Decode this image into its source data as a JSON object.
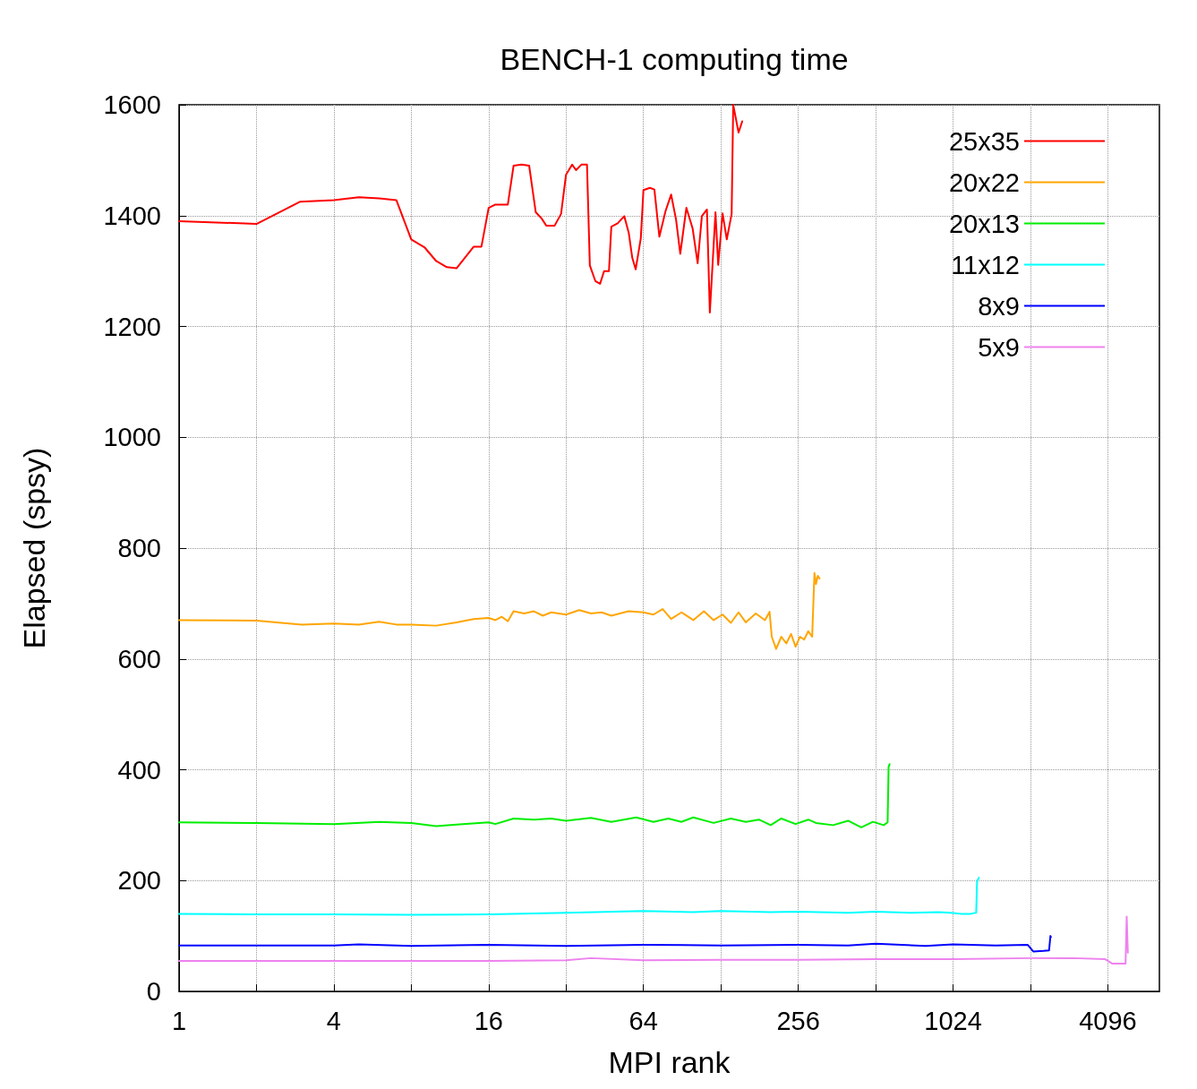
{
  "chart_data": {
    "type": "line",
    "title": "BENCH-1 computing time",
    "xlabel": "MPI rank",
    "ylabel": "Elapsed (spsy)",
    "log": "x",
    "grid": true,
    "legend": "top right",
    "marker": "none",
    "line_style": "solid",
    "xlim": [
      1,
      6500
    ],
    "xticks": [
      1,
      {
        "value": 2,
        "label": null
      },
      4,
      {
        "value": 8,
        "label": null
      },
      16,
      {
        "value": 32,
        "label": null
      },
      64,
      {
        "value": 128,
        "label": null
      },
      256,
      {
        "value": 512,
        "label": null
      },
      1024,
      {
        "value": 2048,
        "label": null
      },
      4096
    ],
    "ylim": [
      0,
      1600
    ],
    "yticks": [
      0,
      200,
      400,
      600,
      800,
      1000,
      1200,
      1400,
      1600
    ],
    "series": [
      {
        "name": "25x35",
        "color": "#ff0000",
        "x": [
          1,
          2,
          2.95,
          4,
          5,
          6,
          7,
          8,
          9,
          10,
          11,
          12,
          14,
          15,
          16,
          17,
          19,
          20,
          21.5,
          23,
          24.4,
          25.7,
          26.8,
          28.9,
          30.6,
          32,
          33.8,
          35,
          36.7,
          38.6,
          39.6,
          41.6,
          43.4,
          45,
          47,
          48,
          50.8,
          53.9,
          56.1,
          57.9,
          59.7,
          62.5,
          64,
          67.8,
          70.6,
          73.8,
          78,
          82,
          85.7,
          89,
          94,
          99.4,
          104,
          108,
          113,
          116,
          122,
          125,
          130,
          135,
          141,
          143,
          150,
          155
        ],
        "values": [
          1390,
          1385,
          1425,
          1428,
          1433,
          1431,
          1428,
          1357,
          1343,
          1318,
          1307,
          1305,
          1344,
          1344,
          1414,
          1420,
          1420,
          1490,
          1492,
          1490,
          1406,
          1395,
          1382,
          1382,
          1403,
          1474,
          1492,
          1482,
          1492,
          1492,
          1310,
          1282,
          1277,
          1300,
          1300,
          1380,
          1386,
          1399,
          1369,
          1324,
          1303,
          1359,
          1446,
          1450,
          1447,
          1362,
          1408,
          1438,
          1393,
          1331,
          1414,
          1377,
          1314,
          1399,
          1411,
          1225,
          1406,
          1311,
          1404,
          1357,
          1403,
          1600,
          1550,
          1570
        ]
      },
      {
        "name": "20x22",
        "color": "#ffa500",
        "x": [
          1,
          2,
          3,
          4,
          5,
          6,
          7,
          8,
          10,
          12,
          14,
          16,
          17,
          18,
          19,
          20,
          22,
          24,
          26,
          28,
          32,
          36,
          40,
          44,
          48,
          56,
          64,
          70,
          76,
          82,
          90,
          100,
          110,
          120,
          130,
          140,
          150,
          160,
          175,
          190,
          198,
          202,
          210,
          220,
          230,
          240,
          250,
          260,
          270,
          280,
          290,
          296,
          300,
          305,
          310
        ],
        "values": [
          670,
          669,
          662,
          664,
          662,
          667,
          662,
          662,
          660,
          666,
          672,
          674,
          670,
          676,
          668,
          686,
          682,
          686,
          678,
          684,
          680,
          688,
          682,
          684,
          678,
          686,
          684,
          680,
          690,
          672,
          684,
          670,
          686,
          670,
          680,
          665,
          684,
          666,
          682,
          670,
          685,
          640,
          618,
          640,
          628,
          645,
          622,
          640,
          635,
          650,
          640,
          755,
          735,
          750,
          745
        ]
      },
      {
        "name": "20x13",
        "color": "#00ee00",
        "x": [
          1,
          2,
          4,
          6,
          8,
          10,
          12,
          16,
          17,
          20,
          24,
          28,
          32,
          40,
          48,
          60,
          70,
          80,
          90,
          100,
          120,
          140,
          160,
          180,
          200,
          220,
          250,
          280,
          300,
          350,
          400,
          450,
          500,
          550,
          570,
          575,
          580
        ],
        "values": [
          305,
          304,
          302,
          306,
          304,
          298,
          301,
          305,
          302,
          312,
          310,
          312,
          308,
          313,
          306,
          314,
          306,
          312,
          306,
          314,
          304,
          312,
          306,
          310,
          300,
          312,
          302,
          310,
          304,
          300,
          308,
          296,
          306,
          300,
          305,
          405,
          410
        ]
      },
      {
        "name": "11x12",
        "color": "#00ffff",
        "x": [
          1,
          2,
          4,
          8,
          16,
          32,
          64,
          100,
          128,
          200,
          256,
          400,
          512,
          700,
          900,
          1000,
          1100,
          1200,
          1260,
          1270,
          1290
        ],
        "values": [
          140,
          139,
          139,
          138,
          139,
          142,
          145,
          143,
          145,
          143,
          144,
          142,
          144,
          142,
          143,
          142,
          140,
          140,
          142,
          198,
          205
        ]
      },
      {
        "name": "8x9",
        "color": "#0000ff",
        "x": [
          1,
          2,
          4,
          5,
          8,
          16,
          32,
          64,
          128,
          256,
          400,
          512,
          800,
          1024,
          1500,
          2000,
          2100,
          2300,
          2420,
          2450,
          2460
        ],
        "values": [
          83,
          83,
          83,
          85,
          82,
          84,
          82,
          84,
          83,
          84,
          83,
          86,
          82,
          85,
          83,
          84,
          72,
          73,
          74,
          100,
          98
        ]
      },
      {
        "name": "5x9",
        "color": "#ee82ee",
        "x": [
          1,
          4,
          16,
          32,
          40,
          64,
          128,
          256,
          512,
          1024,
          2048,
          3000,
          4000,
          4270,
          4500,
          4800,
          4850,
          4900
        ],
        "values": [
          55,
          55,
          55,
          56,
          60,
          56,
          57,
          57,
          58,
          58,
          60,
          60,
          58,
          50,
          50,
          50,
          135,
          70
        ]
      }
    ]
  }
}
